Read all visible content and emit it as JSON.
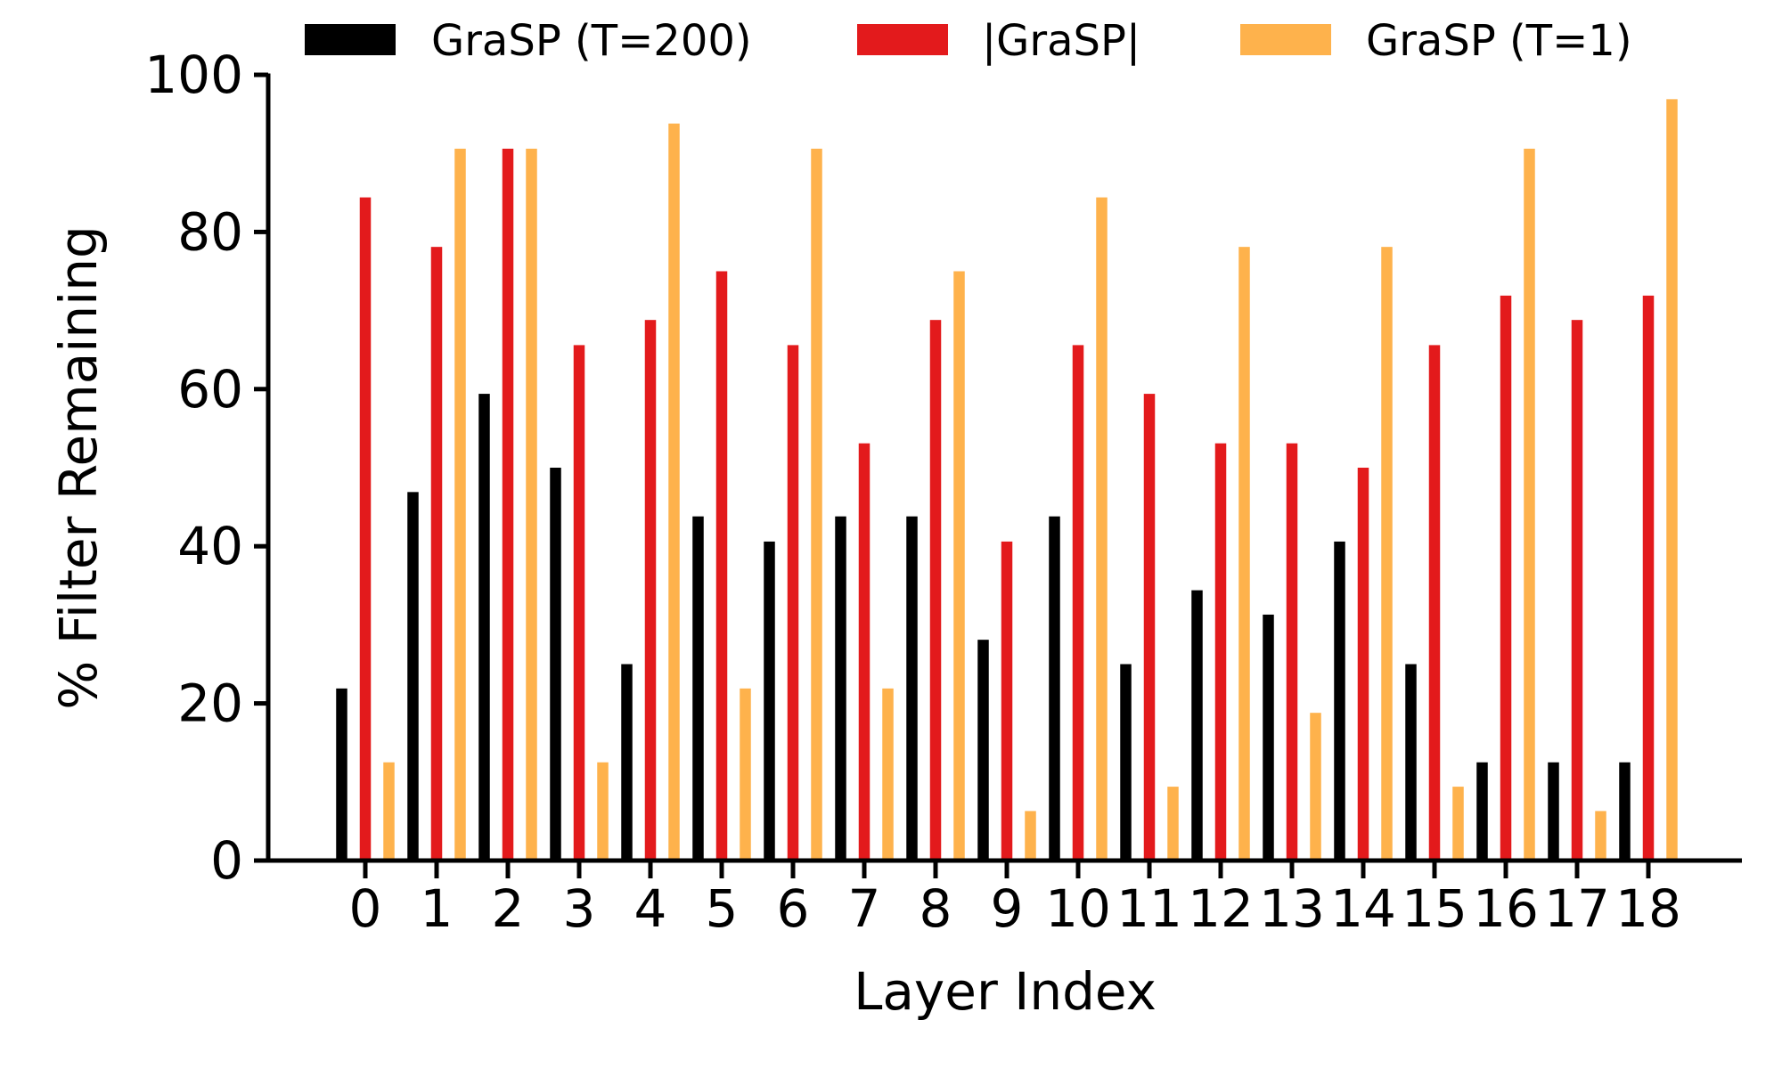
{
  "chart_data": {
    "type": "bar",
    "title": "",
    "xlabel": "Layer Index",
    "ylabel": "% Filter Remaining",
    "ylim": [
      0,
      100
    ],
    "yticks": [
      "0",
      "20",
      "40",
      "60",
      "80",
      "100"
    ],
    "grid": false,
    "legend_position": "top",
    "categories": [
      "0",
      "1",
      "2",
      "3",
      "4",
      "5",
      "6",
      "7",
      "8",
      "9",
      "10",
      "11",
      "12",
      "13",
      "14",
      "15",
      "16",
      "17",
      "18"
    ],
    "series": [
      {
        "name": "GraSP (T=200)",
        "color": "#000000",
        "values": [
          21.9,
          46.9,
          59.4,
          50.0,
          25.0,
          43.8,
          40.6,
          43.8,
          43.8,
          28.1,
          43.8,
          25.0,
          34.4,
          31.3,
          40.6,
          25.0,
          12.5,
          12.5,
          12.5
        ]
      },
      {
        "name": "|GraSP|",
        "color": "#e31a1c",
        "values": [
          84.4,
          78.1,
          90.6,
          65.6,
          68.8,
          75.0,
          65.6,
          53.1,
          68.8,
          40.6,
          65.6,
          59.4,
          53.1,
          53.1,
          50.0,
          65.6,
          71.9,
          68.8,
          71.9
        ]
      },
      {
        "name": "GraSP (T=1)",
        "color": "#feb24c",
        "values": [
          12.5,
          90.6,
          90.6,
          12.5,
          93.8,
          21.9,
          90.6,
          21.9,
          75.0,
          6.3,
          84.4,
          9.4,
          78.1,
          18.8,
          78.1,
          9.4,
          90.6,
          6.3,
          96.9
        ]
      }
    ]
  }
}
